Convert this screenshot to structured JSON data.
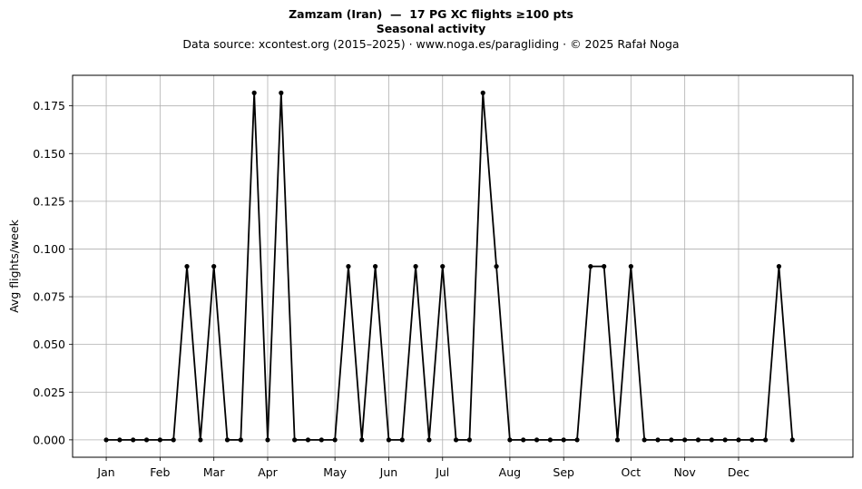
{
  "chart_data": {
    "type": "line",
    "title": "Zamzam (Iran)  —  17 PG XC flights ≥100 pts",
    "subtitle": "Seasonal activity",
    "source": "Data source: xcontest.org (2015–2025)  ·  www.noga.es/paragliding  ·  © 2025 Rafał Noga",
    "xlabel": "",
    "ylabel": "Avg flights/week",
    "x_tick_labels": [
      "Jan",
      "Feb",
      "Mar",
      "Apr",
      "May",
      "Jun",
      "Jul",
      "Aug",
      "Sep",
      "Oct",
      "Nov",
      "Dec"
    ],
    "x_tick_weeks": [
      1,
      5,
      9,
      13,
      18,
      22,
      26,
      31,
      35,
      40,
      44,
      48
    ],
    "xlim": [
      -1.5,
      56.5
    ],
    "ylim": [
      -0.0091,
      0.191
    ],
    "y_ticks": [
      0.0,
      0.025,
      0.05,
      0.075,
      0.1,
      0.125,
      0.15,
      0.175
    ],
    "y_tick_labels": [
      "0.000",
      "0.025",
      "0.050",
      "0.075",
      "0.100",
      "0.125",
      "0.150",
      "0.175"
    ],
    "grid": true,
    "series": [
      {
        "name": "",
        "color": "#000000",
        "x": [
          1,
          2,
          3,
          4,
          5,
          6,
          7,
          8,
          9,
          10,
          11,
          12,
          13,
          14,
          15,
          16,
          17,
          18,
          19,
          20,
          21,
          22,
          23,
          24,
          25,
          26,
          27,
          28,
          29,
          30,
          31,
          32,
          33,
          34,
          35,
          36,
          37,
          38,
          39,
          40,
          41,
          42,
          43,
          44,
          45,
          46,
          47,
          48,
          49,
          50,
          51,
          52
        ],
        "values": [
          0,
          0,
          0,
          0,
          0,
          0,
          0.0909,
          0,
          0.0909,
          0,
          0,
          0.1818,
          0,
          0.1818,
          0,
          0,
          0,
          0,
          0.0909,
          0,
          0.0909,
          0,
          0,
          0.0909,
          0,
          0.0909,
          0,
          0,
          0.1818,
          0.0909,
          0,
          0,
          0,
          0,
          0,
          0,
          0.0909,
          0.0909,
          0,
          0.0909,
          0,
          0,
          0,
          0,
          0,
          0,
          0,
          0,
          0,
          0,
          0.0909,
          0
        ]
      }
    ]
  }
}
